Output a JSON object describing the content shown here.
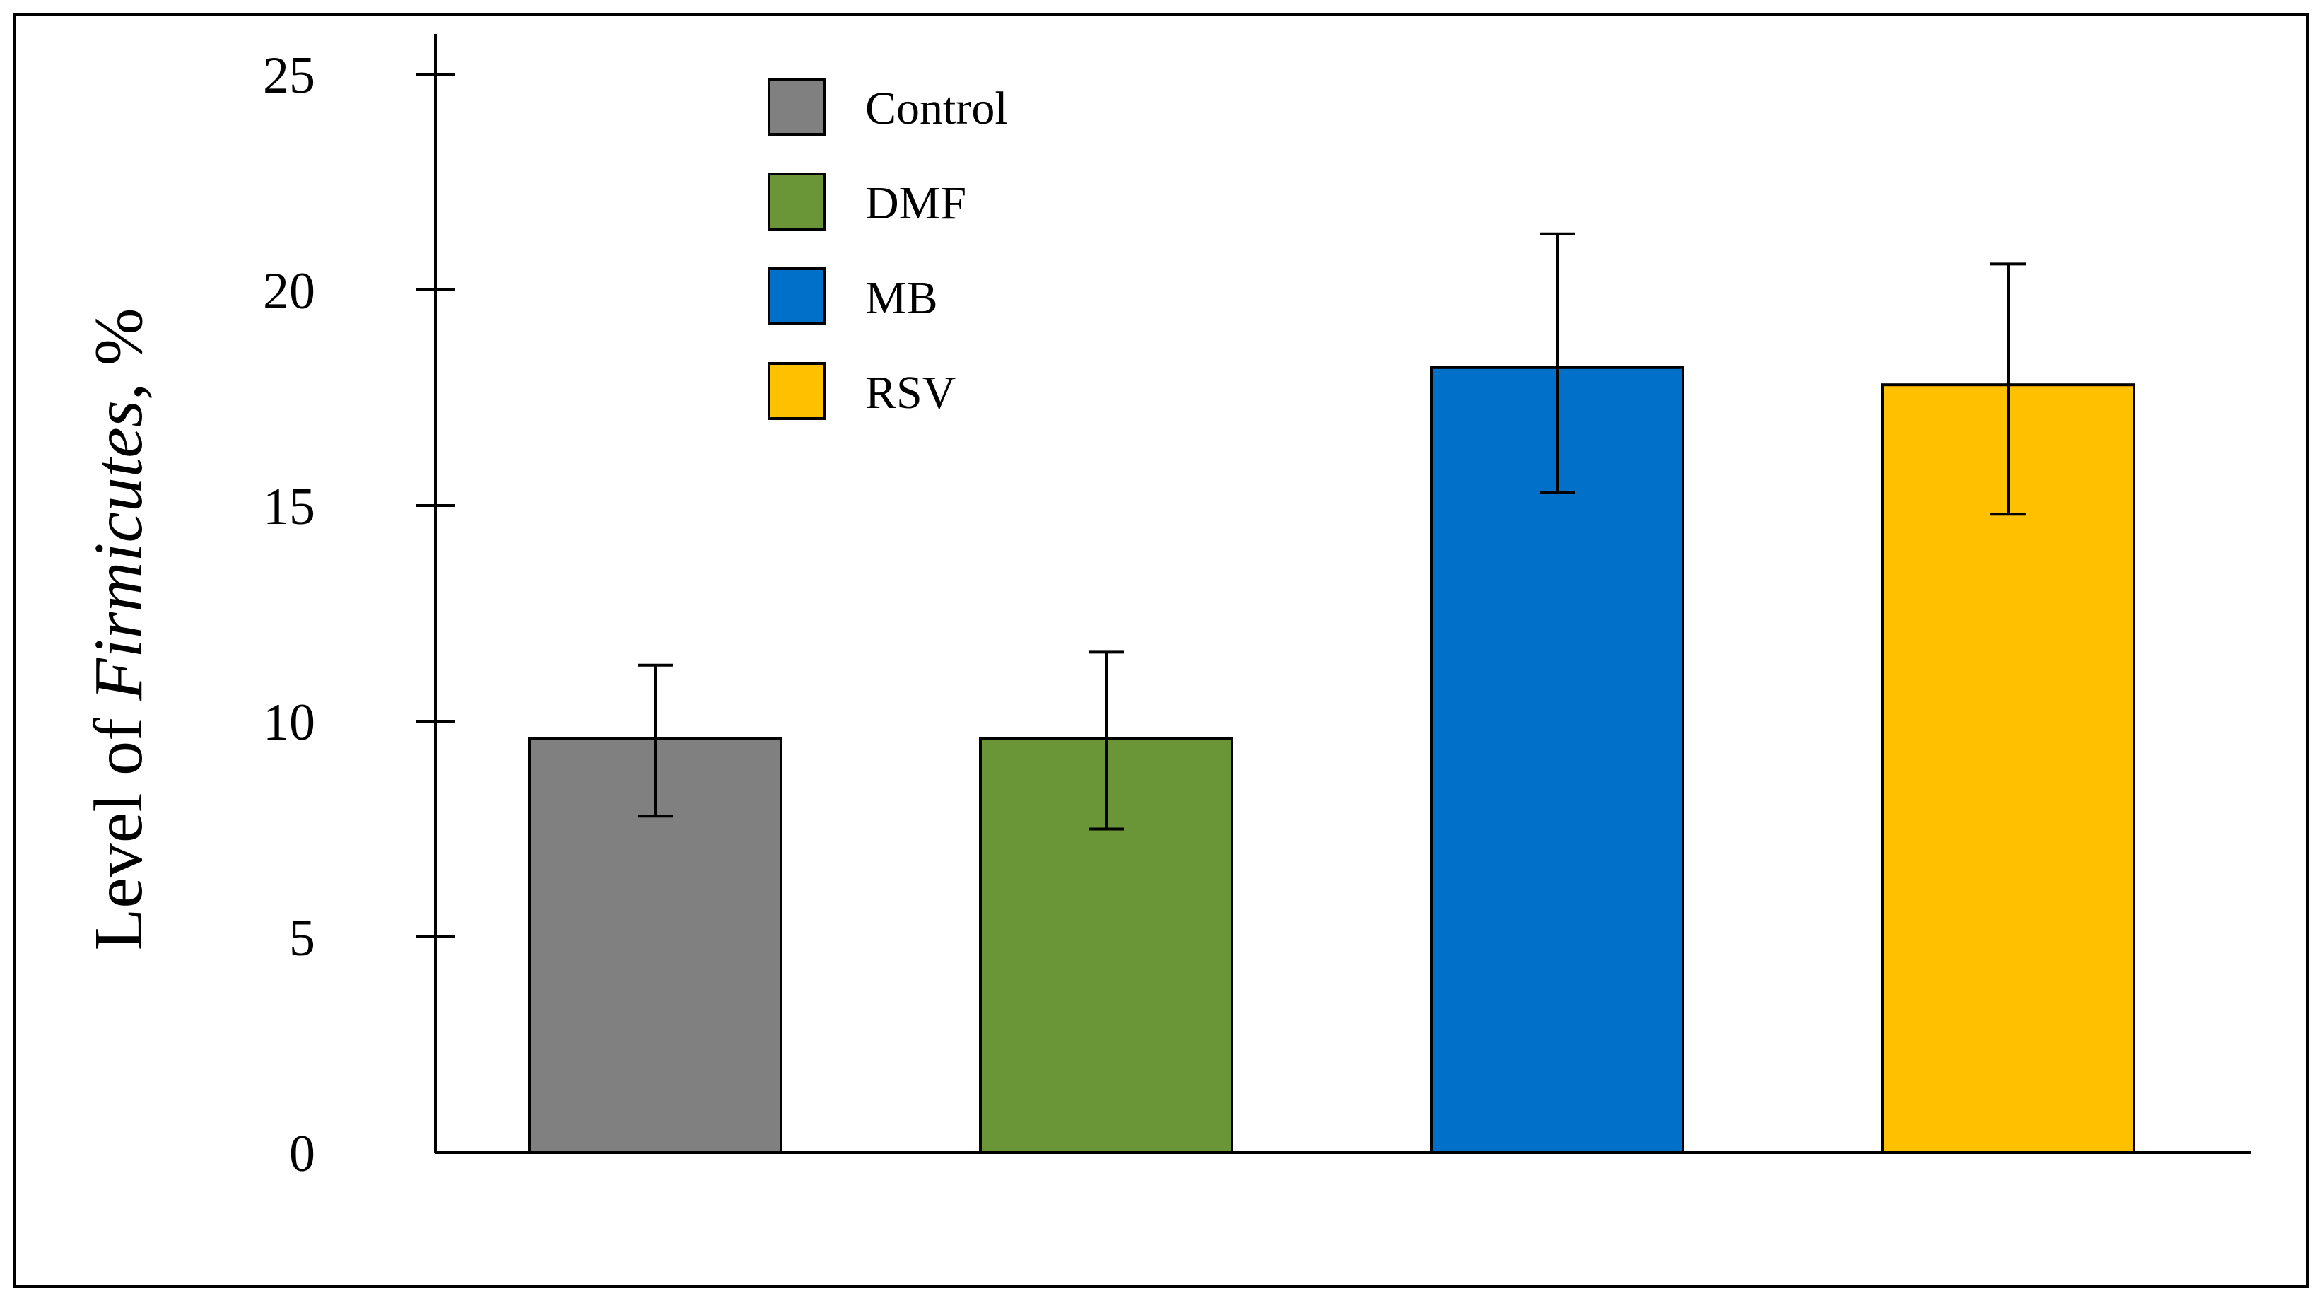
{
  "chart_data": {
    "type": "bar",
    "title": "",
    "xlabel": "",
    "ylabel": "Level of Firmicutes, %",
    "ylabel_parts": {
      "prefix": "Level of ",
      "italic": "Firmicutes",
      "suffix": ", %"
    },
    "categories": [
      "Control",
      "DMF",
      "MB",
      "RSV"
    ],
    "values": [
      9.6,
      9.6,
      18.2,
      17.8
    ],
    "error_upper": [
      11.3,
      11.6,
      21.3,
      20.6
    ],
    "error_lower": [
      7.8,
      7.5,
      15.3,
      14.8
    ],
    "colors": [
      "#808080",
      "#6A9638",
      "#0070C8",
      "#FFC000"
    ],
    "ylim": [
      0,
      25
    ],
    "yticks": [
      0,
      5,
      10,
      15,
      20,
      25
    ],
    "ytick_labels": [
      "0",
      "5",
      "10",
      "15",
      "20",
      "25"
    ],
    "grid": false,
    "legend": {
      "position": "top-left",
      "entries": [
        "Control",
        "DMF",
        "MB",
        "RSV"
      ]
    }
  }
}
